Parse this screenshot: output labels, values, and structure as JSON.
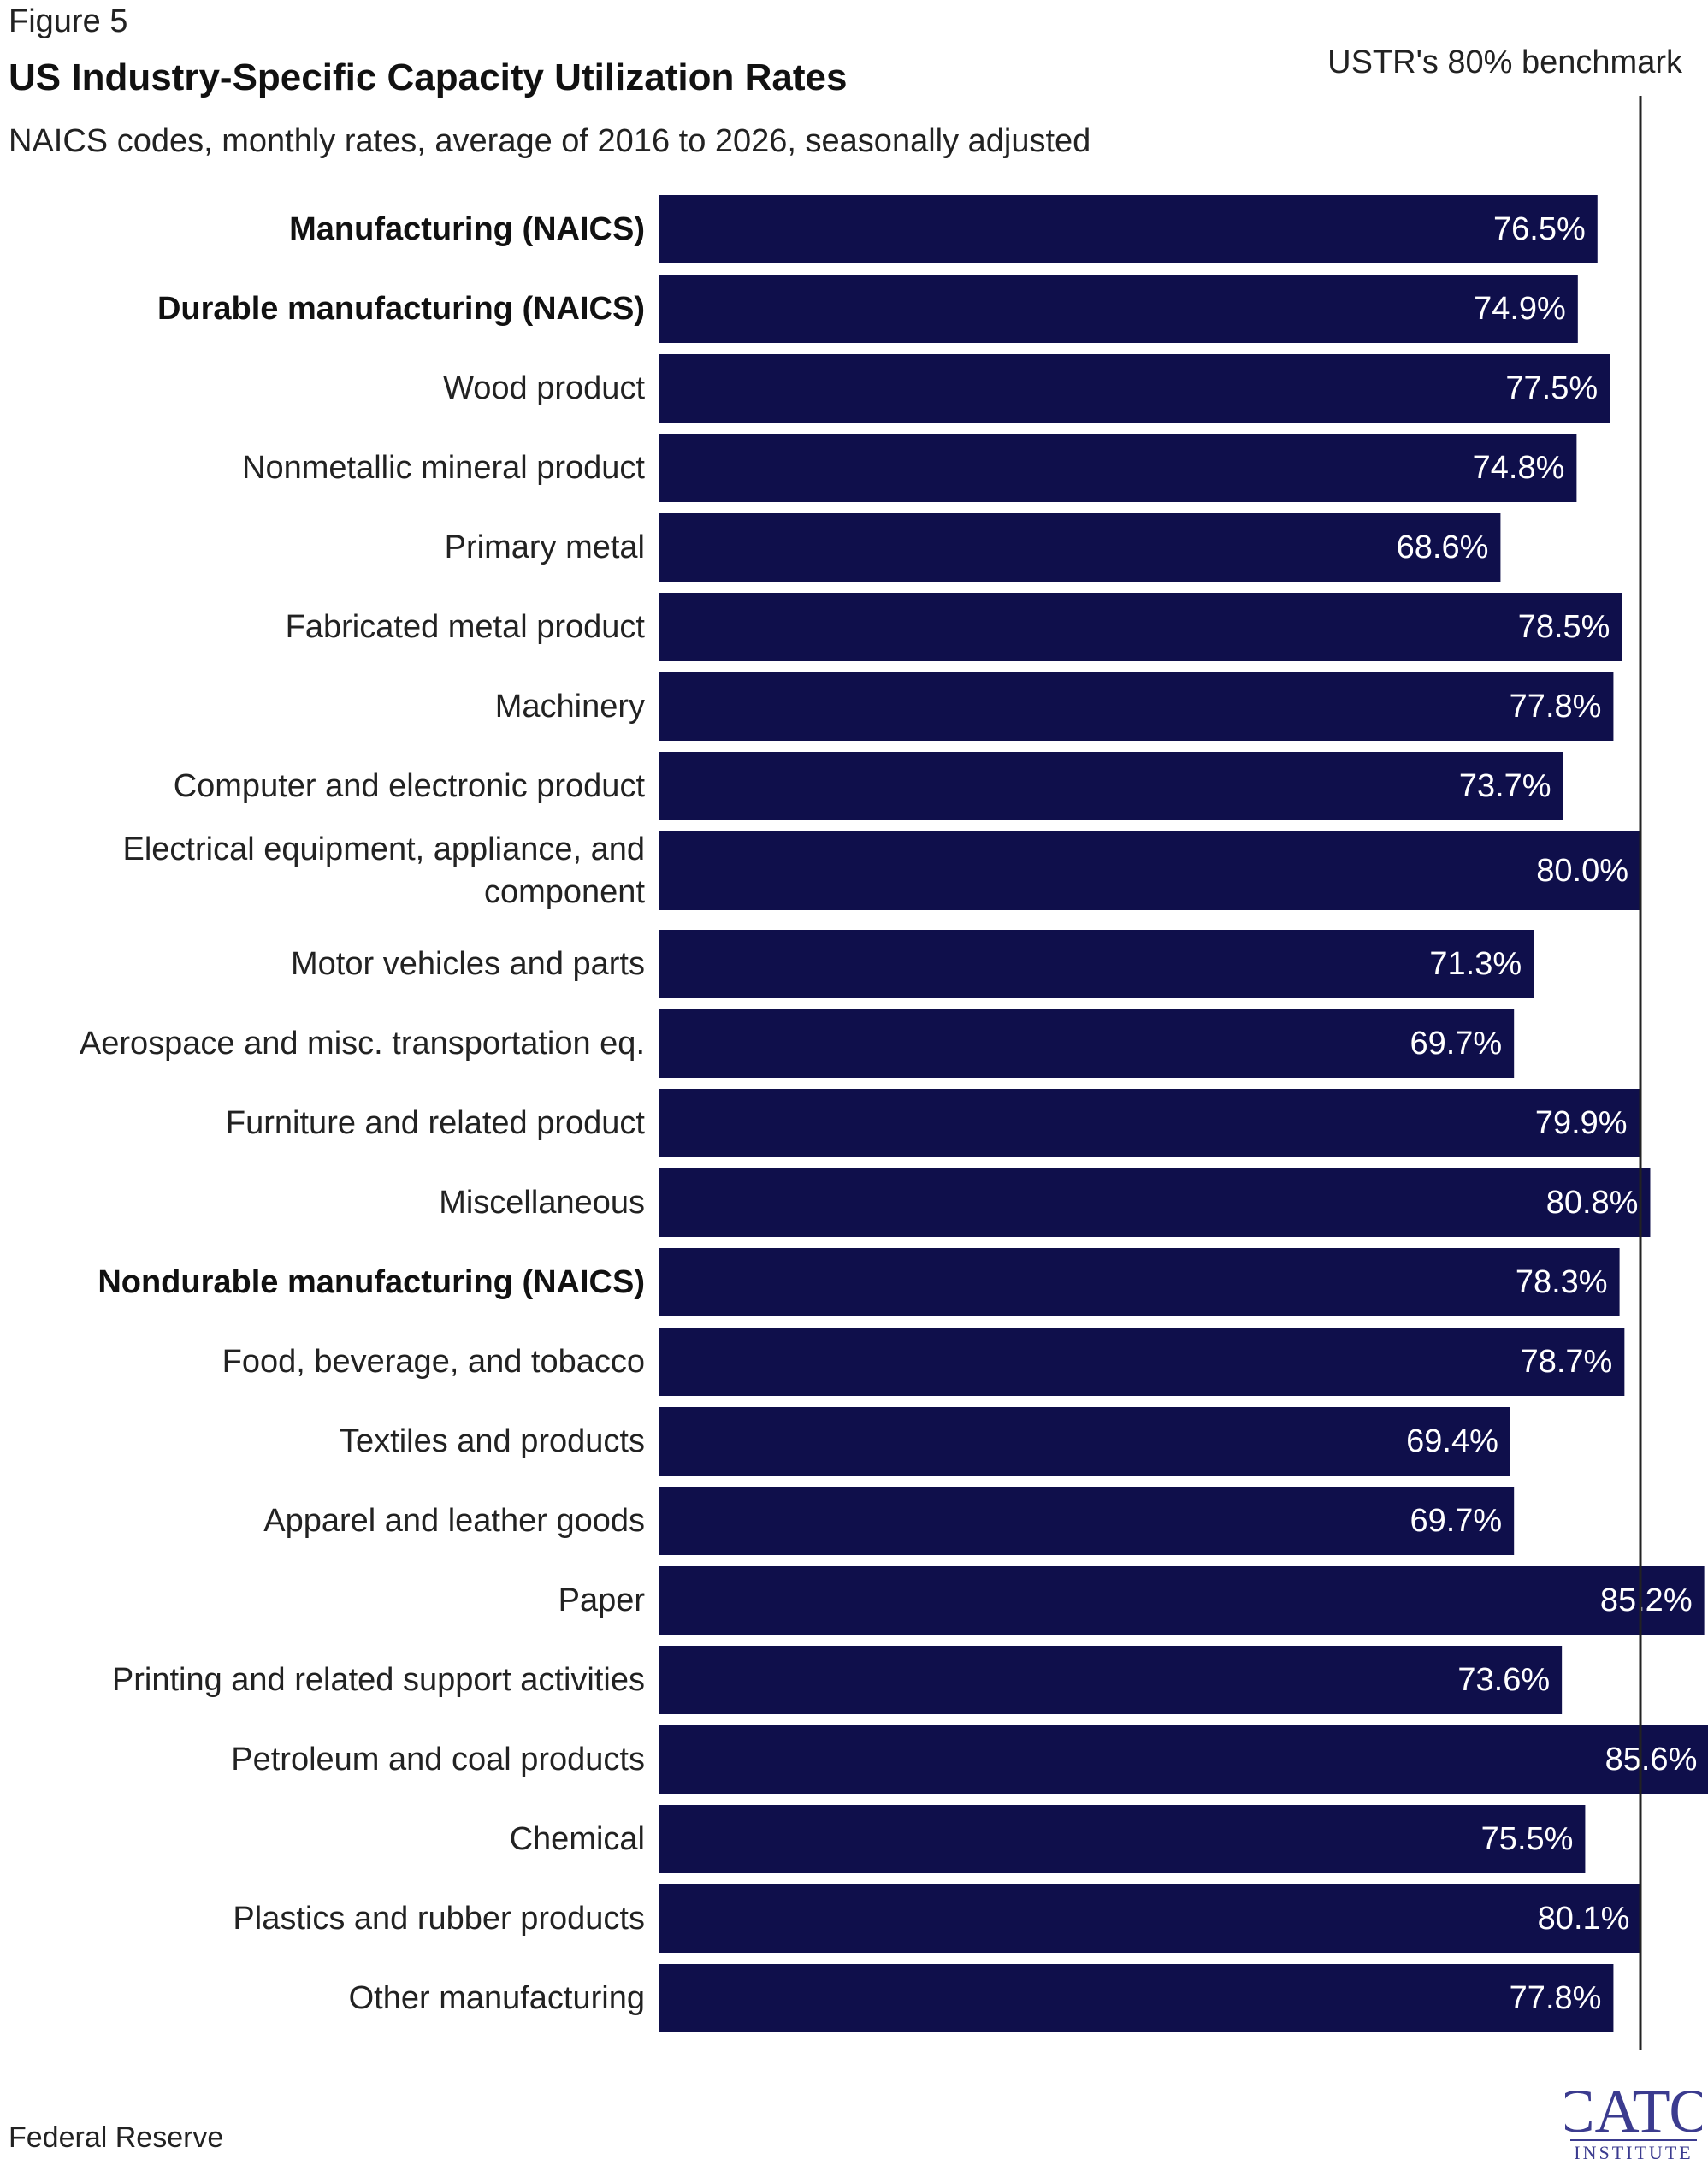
{
  "figure_label": "Figure 5",
  "source": "Federal Reserve",
  "logo": {
    "top_text": "CATO",
    "bottom_text": "INSTITUTE",
    "color": "#3b3b8f"
  },
  "colors": {
    "bar": "#0f0f4b",
    "benchmark_line": "#222222",
    "value_text": "#ffffff"
  },
  "chart_data": {
    "type": "bar",
    "orientation": "horizontal",
    "title": "US Industry-Specific Capacity Utilization Rates",
    "subtitle": "NAICS codes, monthly rates, average of 2016 to 2026, seasonally adjusted",
    "xlim": [
      0,
      86
    ],
    "benchmark": {
      "value": 80,
      "label": "USTR's 80% benchmark"
    },
    "categories": [
      {
        "lines": [
          "Manufacturing (NAICS)"
        ],
        "bold": true
      },
      {
        "lines": [
          "Durable manufacturing (NAICS)"
        ],
        "bold": true
      },
      {
        "lines": [
          "Wood product"
        ],
        "bold": false
      },
      {
        "lines": [
          "Nonmetallic mineral product"
        ],
        "bold": false
      },
      {
        "lines": [
          "Primary metal"
        ],
        "bold": false
      },
      {
        "lines": [
          "Fabricated metal product"
        ],
        "bold": false
      },
      {
        "lines": [
          "Machinery"
        ],
        "bold": false
      },
      {
        "lines": [
          "Computer and electronic product"
        ],
        "bold": false
      },
      {
        "lines": [
          "Electrical equipment, appliance, and",
          "component"
        ],
        "bold": false
      },
      {
        "lines": [
          "Motor vehicles and parts"
        ],
        "bold": false
      },
      {
        "lines": [
          "Aerospace and misc. transportation eq."
        ],
        "bold": false
      },
      {
        "lines": [
          "Furniture and related product"
        ],
        "bold": false
      },
      {
        "lines": [
          "Miscellaneous"
        ],
        "bold": false
      },
      {
        "lines": [
          "Nondurable manufacturing (NAICS)"
        ],
        "bold": true
      },
      {
        "lines": [
          "Food, beverage, and tobacco"
        ],
        "bold": false
      },
      {
        "lines": [
          "Textiles and products"
        ],
        "bold": false
      },
      {
        "lines": [
          "Apparel and leather goods"
        ],
        "bold": false
      },
      {
        "lines": [
          "Paper"
        ],
        "bold": false
      },
      {
        "lines": [
          "Printing and related support activities"
        ],
        "bold": false
      },
      {
        "lines": [
          "Petroleum and coal products"
        ],
        "bold": false
      },
      {
        "lines": [
          "Chemical"
        ],
        "bold": false
      },
      {
        "lines": [
          "Plastics and rubber products"
        ],
        "bold": false
      },
      {
        "lines": [
          "Other manufacturing"
        ],
        "bold": false
      }
    ],
    "values": [
      76.5,
      74.9,
      77.5,
      74.8,
      68.6,
      78.5,
      77.8,
      73.7,
      80.0,
      71.3,
      69.7,
      79.9,
      80.8,
      78.3,
      78.7,
      69.4,
      69.7,
      85.2,
      73.6,
      85.6,
      75.5,
      80.1,
      77.8
    ],
    "value_labels": [
      "76.5%",
      "74.9%",
      "77.5%",
      "74.8%",
      "68.6%",
      "78.5%",
      "77.8%",
      "73.7%",
      "80.0%",
      "71.3%",
      "69.7%",
      "79.9%",
      "80.8%",
      "78.3%",
      "78.7%",
      "69.4%",
      "69.7%",
      "85.2%",
      "73.6%",
      "85.6%",
      "75.5%",
      "80.1%",
      "77.8%"
    ]
  }
}
